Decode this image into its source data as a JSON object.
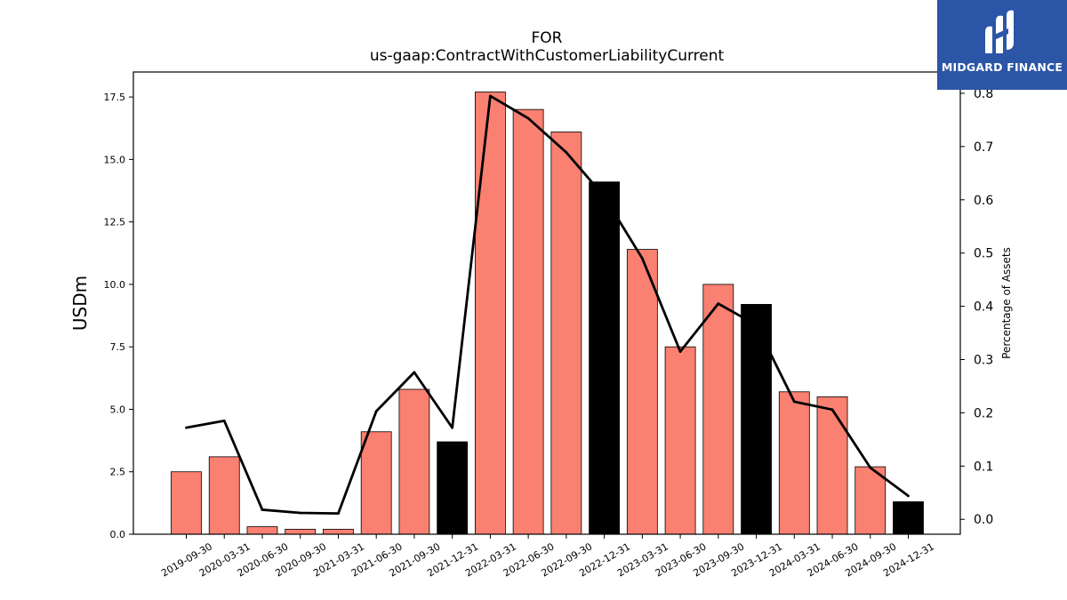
{
  "chart_data": {
    "type": "bar",
    "title": "FOR",
    "subtitle": "us-gaap:ContractWithCustomerLiabilityCurrent",
    "ylabel": "USDm",
    "y2label": "Percentage of Assets",
    "ylim": [
      0,
      18.5
    ],
    "y2lim": [
      -0.028,
      0.84
    ],
    "yticks": [
      "0.0",
      "2.5",
      "5.0",
      "7.5",
      "10.0",
      "12.5",
      "15.0",
      "17.5"
    ],
    "y2ticks": [
      "0.0",
      "0.1",
      "0.2",
      "0.3",
      "0.4",
      "0.5",
      "0.6",
      "0.7",
      "0.8"
    ],
    "categories": [
      "2019-09-30",
      "2020-03-31",
      "2020-06-30",
      "2020-09-30",
      "2021-03-31",
      "2021-06-30",
      "2021-09-30",
      "2021-12-31",
      "2022-03-31",
      "2022-06-30",
      "2022-09-30",
      "2022-12-31",
      "2023-03-31",
      "2023-06-30",
      "2023-09-30",
      "2023-12-31",
      "2024-03-31",
      "2024-06-30",
      "2024-09-30",
      "2024-12-31"
    ],
    "series": [
      {
        "values": [
          2.5,
          3.1,
          0.3,
          0.2,
          0.2,
          4.1,
          5.8,
          3.7,
          17.7,
          17.0,
          16.1,
          14.1,
          11.4,
          7.5,
          10.0,
          9.2,
          5.7,
          5.5,
          2.7,
          1.3
        ],
        "highlight": [
          false,
          false,
          false,
          false,
          false,
          false,
          false,
          true,
          false,
          false,
          false,
          true,
          false,
          false,
          false,
          true,
          false,
          false,
          false,
          true
        ]
      },
      {
        "type": "line",
        "axis": "right",
        "values": [
          0.172,
          0.185,
          0.018,
          0.012,
          0.011,
          0.203,
          0.276,
          0.172,
          0.795,
          0.753,
          0.689,
          0.606,
          0.49,
          0.315,
          0.405,
          0.365,
          0.221,
          0.206,
          0.097,
          0.044
        ]
      }
    ],
    "colors": {
      "bar": "#fa8072",
      "bar_highlight": "#000000",
      "line": "#000000"
    }
  },
  "logo": {
    "text": "MIDGARD FINANCE",
    "background": "#2b55a6"
  }
}
